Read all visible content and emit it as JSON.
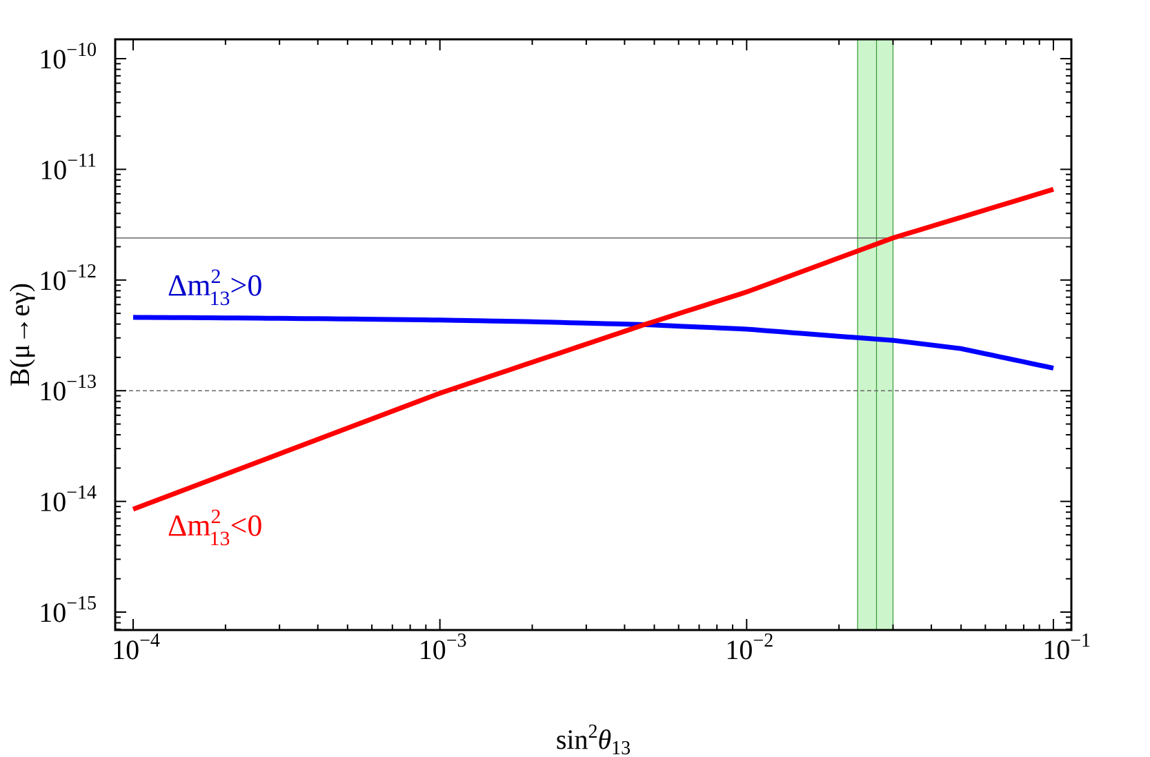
{
  "chart_data": {
    "type": "line",
    "xscale": "log",
    "yscale": "log",
    "xlim": [
      0.0001,
      0.1
    ],
    "ylim": [
      7e-16,
      1.5e-10
    ],
    "x_ticks": [
      {
        "value": 0.0001,
        "base": "10",
        "exp": "−4"
      },
      {
        "value": 0.001,
        "base": "10",
        "exp": "−3"
      },
      {
        "value": 0.01,
        "base": "10",
        "exp": "−2"
      },
      {
        "value": 0.1,
        "base": "10",
        "exp": "−1"
      }
    ],
    "y_ticks": [
      {
        "value": 1e-10,
        "base": "10",
        "exp": "−10"
      },
      {
        "value": 1e-11,
        "base": "10",
        "exp": "−11"
      },
      {
        "value": 1e-12,
        "base": "10",
        "exp": "−12"
      },
      {
        "value": 1e-13,
        "base": "10",
        "exp": "−13"
      },
      {
        "value": 1e-14,
        "base": "10",
        "exp": "−14"
      },
      {
        "value": 1e-15,
        "base": "10",
        "exp": "−15"
      }
    ],
    "xlabel": {
      "main": "sin",
      "sup": "2",
      "theta": "θ",
      "sub": "13"
    },
    "ylabel": "B(μ→eγ)",
    "series": [
      {
        "name": "Δm²₁₃>0",
        "label_parts": {
          "delta": "Δm",
          "sup": "2",
          "sub": "13",
          "rel": ">0"
        },
        "color": "#0000ff",
        "label_color": "#0000cc",
        "x": [
          0.0001,
          0.0002,
          0.0005,
          0.001,
          0.002,
          0.0047,
          0.01,
          0.02,
          0.03,
          0.05,
          0.1
        ],
        "y": [
          4.6e-13,
          4.55e-13,
          4.45e-13,
          4.35e-13,
          4.2e-13,
          3.95e-13,
          3.6e-13,
          3.1e-13,
          2.85e-13,
          2.4e-13,
          1.6e-13
        ]
      },
      {
        "name": "Δm²₁₃<0",
        "label_parts": {
          "delta": "Δm",
          "sup": "2",
          "sub": "13",
          "rel": "<0"
        },
        "color": "#ff0000",
        "label_color": "#ff0000",
        "x": [
          0.0001,
          0.001,
          0.0047,
          0.01,
          0.03,
          0.1
        ],
        "y": [
          8.5e-15,
          9.5e-14,
          4e-13,
          7.8e-13,
          2.4e-12,
          6.6e-12
        ]
      }
    ],
    "reference_lines": [
      {
        "kind": "horizontal",
        "y": 2.4e-12,
        "style": "solid",
        "color": "#666666"
      },
      {
        "kind": "horizontal",
        "y": 1e-13,
        "style": "dashed",
        "color": "#666666"
      }
    ],
    "band": {
      "x_min": 0.023,
      "x_max": 0.03,
      "x_center": 0.0265,
      "fill": "#ccf5cc",
      "stroke": "#339933"
    },
    "grid": false,
    "legend": "none (inline curve labels)"
  }
}
